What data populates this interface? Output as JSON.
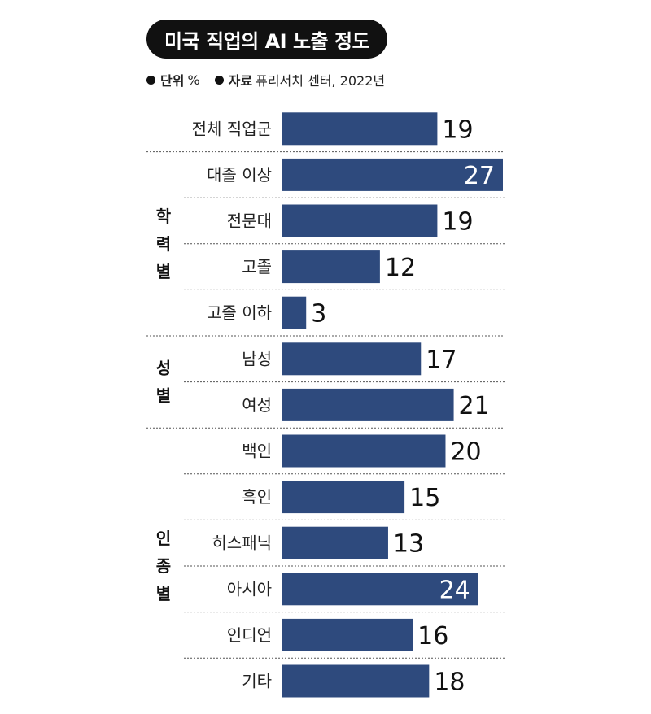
{
  "header": {
    "title": "미국 직업의 AI 노출 정도",
    "unit_key": "단위",
    "unit_value": "%",
    "source_key": "자료",
    "source_value": "퓨리서치 센터, 2022년"
  },
  "chart_data": {
    "type": "bar",
    "orientation": "horizontal",
    "bar_color": "#2e4a7d",
    "categories": [
      "전체 직업군",
      "대졸 이상",
      "전문대",
      "고졸",
      "고졸 이하",
      "남성",
      "여성",
      "백인",
      "흑인",
      "히스패닉",
      "아시아",
      "인디언",
      "기타"
    ],
    "values": [
      19,
      27,
      19,
      12,
      3,
      17,
      21,
      20,
      15,
      13,
      24,
      16,
      18
    ],
    "groups": [
      {
        "label": "학력별",
        "chars": [
          "학",
          "력",
          "별"
        ],
        "start": 1,
        "end": 4
      },
      {
        "label": "성별",
        "chars": [
          "성",
          "별"
        ],
        "start": 5,
        "end": 6
      },
      {
        "label": "인종별",
        "chars": [
          "인",
          "종",
          "별"
        ],
        "start": 7,
        "end": 12
      }
    ],
    "grid": false,
    "legend": "none"
  }
}
